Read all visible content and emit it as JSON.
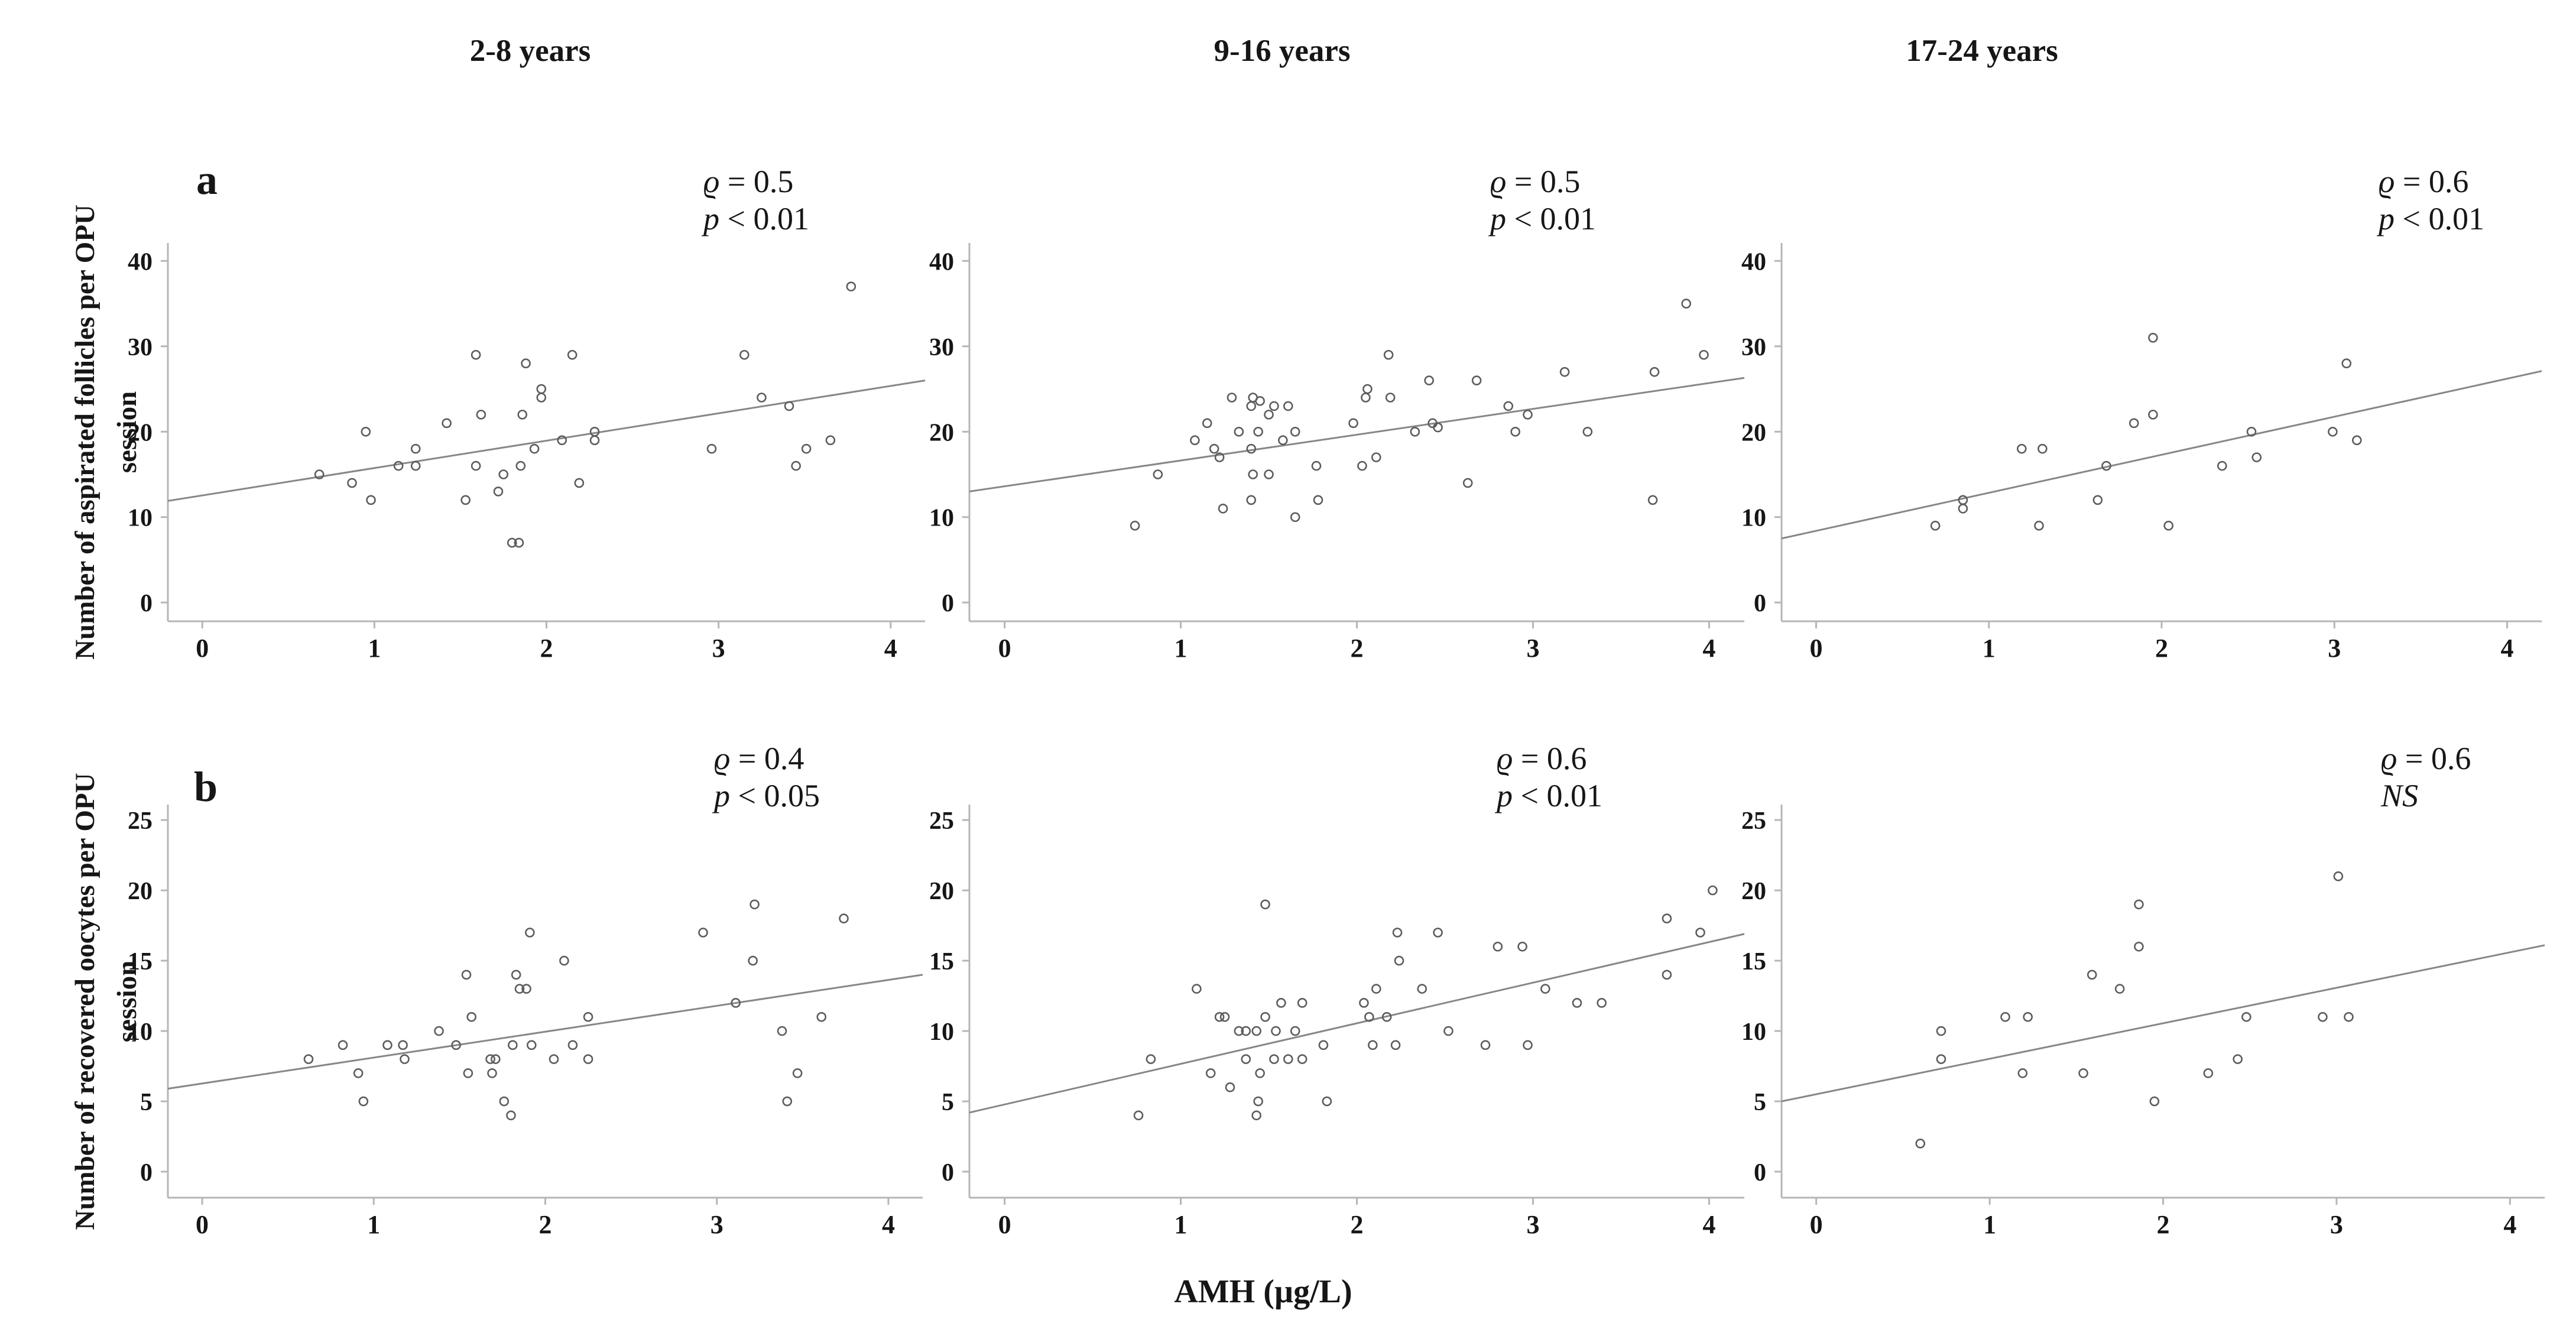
{
  "figure": {
    "column_headers": [
      "2-8 years",
      "9-16 years",
      "17-24 years"
    ],
    "panel_letters": [
      "a",
      "b"
    ],
    "row_labels": [
      {
        "line1": "Number of aspirated follicles per OPU",
        "line2": "session"
      },
      {
        "line1": "Number of recovered oocytes per OPU",
        "line2": "session"
      }
    ],
    "x_axis_label": "AMH (µg/L)"
  },
  "style": {
    "background": "#ffffff",
    "text_color": "#161616",
    "axis_color": "#b6b6b6",
    "trend_color": "#878787",
    "point_color": "#5c5c5c"
  },
  "chart_data": [
    {
      "id": "a1",
      "type": "scatter",
      "age_group": "2-8 years",
      "ylabel": "Number of aspirated follicles per OPU session",
      "xlabel": "AMH (µg/L)",
      "xlim": [
        -0.2,
        4.2
      ],
      "ylim": [
        -2.2,
        42.1
      ],
      "x_ticks": [
        0,
        1,
        2,
        3,
        4
      ],
      "y_ticks": [
        0,
        10,
        20,
        30,
        40
      ],
      "grid": false,
      "legend": false,
      "annotation": {
        "rho_symbol": "ϱ",
        "rho_value": " = 0.5",
        "sig_italic": "p",
        "sig_rest": " < 0.01"
      },
      "trend": {
        "x1": -0.2,
        "y1": 11.9,
        "x2": 4.2,
        "y2": 26.0
      },
      "points": [
        [
          0.68,
          15
        ],
        [
          0.87,
          14
        ],
        [
          0.95,
          20
        ],
        [
          0.98,
          12
        ],
        [
          1.14,
          16
        ],
        [
          1.24,
          18
        ],
        [
          1.24,
          16
        ],
        [
          1.42,
          21
        ],
        [
          1.53,
          12
        ],
        [
          1.59,
          29
        ],
        [
          1.59,
          16
        ],
        [
          1.62,
          22
        ],
        [
          1.72,
          13
        ],
        [
          1.75,
          15
        ],
        [
          1.8,
          7
        ],
        [
          1.84,
          7
        ],
        [
          1.85,
          16
        ],
        [
          1.86,
          22
        ],
        [
          1.88,
          28
        ],
        [
          1.93,
          18
        ],
        [
          1.97,
          25
        ],
        [
          1.97,
          24
        ],
        [
          2.09,
          19
        ],
        [
          2.15,
          29
        ],
        [
          2.19,
          14
        ],
        [
          2.28,
          20
        ],
        [
          2.28,
          19
        ],
        [
          2.96,
          18
        ],
        [
          3.15,
          29
        ],
        [
          3.25,
          24
        ],
        [
          3.41,
          23
        ],
        [
          3.45,
          16
        ],
        [
          3.51,
          18
        ],
        [
          3.65,
          19
        ],
        [
          3.77,
          37
        ]
      ]
    },
    {
      "id": "a2",
      "type": "scatter",
      "age_group": "9-16 years",
      "ylabel": "Number of aspirated follicles per OPU session",
      "xlabel": "AMH (µg/L)",
      "xlim": [
        -0.2,
        4.2
      ],
      "ylim": [
        -2.2,
        42.1
      ],
      "x_ticks": [
        0,
        1,
        2,
        3,
        4
      ],
      "y_ticks": [
        0,
        10,
        20,
        30,
        40
      ],
      "grid": false,
      "legend": false,
      "annotation": {
        "rho_symbol": "ϱ",
        "rho_value": " = 0.5",
        "sig_italic": "p",
        "sig_rest": " < 0.01"
      },
      "trend": {
        "x1": -0.2,
        "y1": 13.0,
        "x2": 4.2,
        "y2": 26.3
      },
      "points": [
        [
          0.74,
          9
        ],
        [
          0.87,
          15
        ],
        [
          1.08,
          19
        ],
        [
          1.15,
          21
        ],
        [
          1.19,
          18
        ],
        [
          1.22,
          17
        ],
        [
          1.24,
          11
        ],
        [
          1.29,
          24
        ],
        [
          1.33,
          20
        ],
        [
          1.4,
          23
        ],
        [
          1.4,
          18
        ],
        [
          1.4,
          12
        ],
        [
          1.41,
          15
        ],
        [
          1.41,
          24
        ],
        [
          1.45,
          23.6
        ],
        [
          1.44,
          20
        ],
        [
          1.5,
          22
        ],
        [
          1.5,
          15
        ],
        [
          1.53,
          23
        ],
        [
          1.58,
          19
        ],
        [
          1.61,
          23
        ],
        [
          1.65,
          20
        ],
        [
          1.65,
          10
        ],
        [
          1.77,
          16
        ],
        [
          1.78,
          12
        ],
        [
          1.98,
          21
        ],
        [
          2.03,
          16
        ],
        [
          2.05,
          24
        ],
        [
          2.06,
          25
        ],
        [
          2.11,
          17
        ],
        [
          2.18,
          29
        ],
        [
          2.19,
          24
        ],
        [
          2.33,
          20
        ],
        [
          2.41,
          26
        ],
        [
          2.43,
          21
        ],
        [
          2.46,
          20.5
        ],
        [
          2.63,
          14
        ],
        [
          2.68,
          26
        ],
        [
          2.86,
          23
        ],
        [
          2.9,
          20
        ],
        [
          2.97,
          22
        ],
        [
          3.18,
          27
        ],
        [
          3.31,
          20
        ],
        [
          3.68,
          12
        ],
        [
          3.69,
          27
        ],
        [
          3.87,
          35
        ],
        [
          3.97,
          29
        ]
      ]
    },
    {
      "id": "a3",
      "type": "scatter",
      "age_group": "17-24 years",
      "ylabel": "Number of aspirated follicles per OPU session",
      "xlabel": "AMH (µg/L)",
      "xlim": [
        -0.2,
        4.2
      ],
      "ylim": [
        -2.2,
        42.1
      ],
      "x_ticks": [
        0,
        1,
        2,
        3,
        4
      ],
      "y_ticks": [
        0,
        10,
        20,
        30,
        40
      ],
      "grid": false,
      "legend": false,
      "annotation": {
        "rho_symbol": "ϱ",
        "rho_value": " = 0.6",
        "sig_italic": "p",
        "sig_rest": " < 0.01"
      },
      "trend": {
        "x1": -0.2,
        "y1": 7.5,
        "x2": 4.2,
        "y2": 27.1
      },
      "points": [
        [
          0.69,
          9
        ],
        [
          0.85,
          12
        ],
        [
          0.85,
          11
        ],
        [
          1.19,
          18
        ],
        [
          1.29,
          9
        ],
        [
          1.31,
          18
        ],
        [
          1.63,
          12
        ],
        [
          1.68,
          16
        ],
        [
          1.84,
          21
        ],
        [
          1.95,
          31
        ],
        [
          1.95,
          22
        ],
        [
          2.04,
          9
        ],
        [
          2.35,
          16
        ],
        [
          2.52,
          20
        ],
        [
          2.55,
          17
        ],
        [
          2.99,
          20
        ],
        [
          3.07,
          28
        ],
        [
          3.13,
          19
        ]
      ]
    },
    {
      "id": "b1",
      "type": "scatter",
      "age_group": "2-8 years",
      "ylabel": "Number of recovered oocytes per OPU session",
      "xlabel": "AMH (µg/L)",
      "xlim": [
        -0.2,
        4.2
      ],
      "ylim": [
        -1.85,
        26.1
      ],
      "x_ticks": [
        0,
        1,
        2,
        3,
        4
      ],
      "y_ticks": [
        0,
        5,
        10,
        15,
        20,
        25
      ],
      "grid": false,
      "legend": false,
      "annotation": {
        "rho_symbol": "ϱ",
        "rho_value": " = 0.4",
        "sig_italic": "p",
        "sig_rest": " < 0.05"
      },
      "trend": {
        "x1": -0.2,
        "y1": 5.9,
        "x2": 4.2,
        "y2": 14.0
      },
      "points": [
        [
          0.62,
          8
        ],
        [
          0.82,
          9
        ],
        [
          0.91,
          7
        ],
        [
          0.94,
          5
        ],
        [
          1.08,
          9
        ],
        [
          1.17,
          9
        ],
        [
          1.18,
          8
        ],
        [
          1.38,
          10
        ],
        [
          1.48,
          9
        ],
        [
          1.54,
          14
        ],
        [
          1.55,
          7
        ],
        [
          1.57,
          11
        ],
        [
          1.68,
          8
        ],
        [
          1.71,
          8
        ],
        [
          1.69,
          7
        ],
        [
          1.76,
          5
        ],
        [
          1.8,
          4
        ],
        [
          1.81,
          9
        ],
        [
          1.83,
          14
        ],
        [
          1.85,
          13
        ],
        [
          1.89,
          13
        ],
        [
          1.91,
          17
        ],
        [
          1.92,
          9
        ],
        [
          2.05,
          8
        ],
        [
          2.11,
          15
        ],
        [
          2.16,
          9
        ],
        [
          2.25,
          11
        ],
        [
          2.25,
          8
        ],
        [
          2.92,
          17
        ],
        [
          3.11,
          12
        ],
        [
          3.21,
          15
        ],
        [
          3.22,
          19
        ],
        [
          3.38,
          10
        ],
        [
          3.41,
          5
        ],
        [
          3.47,
          7
        ],
        [
          3.61,
          11
        ],
        [
          3.74,
          18
        ]
      ]
    },
    {
      "id": "b2",
      "type": "scatter",
      "age_group": "9-16 years",
      "ylabel": "Number of recovered oocytes per OPU session",
      "xlabel": "AMH (µg/L)",
      "xlim": [
        -0.2,
        4.2
      ],
      "ylim": [
        -1.85,
        26.1
      ],
      "x_ticks": [
        0,
        1,
        2,
        3,
        4
      ],
      "y_ticks": [
        0,
        5,
        10,
        15,
        20,
        25
      ],
      "grid": false,
      "legend": false,
      "annotation": {
        "rho_symbol": "ϱ",
        "rho_value": " = 0.6",
        "sig_italic": "p",
        "sig_rest": " < 0.01"
      },
      "trend": {
        "x1": -0.2,
        "y1": 4.2,
        "x2": 4.2,
        "y2": 16.9
      },
      "points": [
        [
          0.76,
          4
        ],
        [
          0.83,
          8
        ],
        [
          1.09,
          13
        ],
        [
          1.17,
          7
        ],
        [
          1.22,
          11
        ],
        [
          1.25,
          11
        ],
        [
          1.28,
          6
        ],
        [
          1.33,
          10
        ],
        [
          1.37,
          10
        ],
        [
          1.37,
          8
        ],
        [
          1.43,
          10
        ],
        [
          1.43,
          4
        ],
        [
          1.44,
          5
        ],
        [
          1.45,
          7
        ],
        [
          1.48,
          19
        ],
        [
          1.48,
          11
        ],
        [
          1.53,
          8
        ],
        [
          1.54,
          10
        ],
        [
          1.57,
          12
        ],
        [
          1.61,
          8
        ],
        [
          1.65,
          10
        ],
        [
          1.69,
          12
        ],
        [
          1.69,
          8
        ],
        [
          1.81,
          9
        ],
        [
          1.83,
          5
        ],
        [
          2.04,
          12
        ],
        [
          2.07,
          11
        ],
        [
          2.09,
          9
        ],
        [
          2.11,
          13
        ],
        [
          2.17,
          11
        ],
        [
          2.22,
          9
        ],
        [
          2.23,
          17
        ],
        [
          2.24,
          15
        ],
        [
          2.37,
          13
        ],
        [
          2.46,
          17
        ],
        [
          2.52,
          10
        ],
        [
          2.73,
          9
        ],
        [
          2.8,
          16
        ],
        [
          2.94,
          16
        ],
        [
          2.97,
          9
        ],
        [
          3.07,
          13
        ],
        [
          3.25,
          12
        ],
        [
          3.39,
          12
        ],
        [
          3.76,
          18
        ],
        [
          3.76,
          14
        ],
        [
          3.95,
          17
        ],
        [
          4.02,
          20
        ]
      ]
    },
    {
      "id": "b3",
      "type": "scatter",
      "age_group": "17-24 years",
      "ylabel": "Number of recovered oocytes per OPU session",
      "xlabel": "AMH (µg/L)",
      "xlim": [
        -0.2,
        4.2
      ],
      "ylim": [
        -1.85,
        26.1
      ],
      "x_ticks": [
        0,
        1,
        2,
        3,
        4
      ],
      "y_ticks": [
        0,
        5,
        10,
        15,
        20,
        25
      ],
      "grid": false,
      "legend": false,
      "annotation": {
        "rho_symbol": "ϱ",
        "rho_value": " = 0.6",
        "sig_italic": "NS",
        "sig_rest": ""
      },
      "trend": {
        "x1": -0.2,
        "y1": 5.0,
        "x2": 4.2,
        "y2": 16.1
      },
      "points": [
        [
          0.6,
          2
        ],
        [
          0.72,
          10
        ],
        [
          0.72,
          8
        ],
        [
          1.09,
          11
        ],
        [
          1.19,
          7
        ],
        [
          1.22,
          11
        ],
        [
          1.54,
          7
        ],
        [
          1.59,
          14
        ],
        [
          1.75,
          13
        ],
        [
          1.86,
          19
        ],
        [
          1.86,
          16
        ],
        [
          1.95,
          5
        ],
        [
          2.26,
          7
        ],
        [
          2.43,
          8
        ],
        [
          2.48,
          11
        ],
        [
          2.92,
          11
        ],
        [
          3.01,
          21
        ],
        [
          3.07,
          11
        ]
      ]
    }
  ]
}
